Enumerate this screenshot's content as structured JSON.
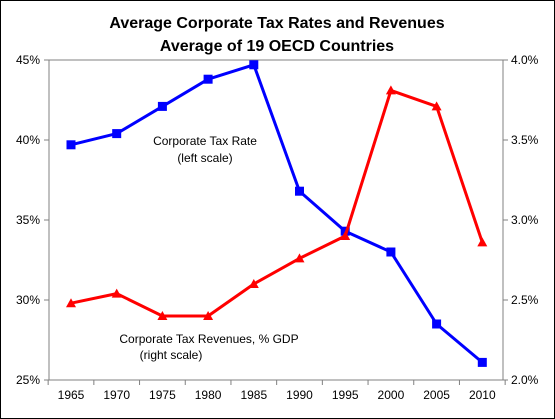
{
  "chart_data": {
    "type": "line",
    "title": "Average Corporate Tax Rates and Revenues",
    "subtitle": "Average of 19 OECD Countries",
    "x": [
      1965,
      1970,
      1975,
      1980,
      1985,
      1990,
      1995,
      2000,
      2005,
      2010
    ],
    "x_tick_labels": [
      "1965",
      "1970",
      "1975",
      "1980",
      "1985",
      "1990",
      "1995",
      "2000",
      "2005",
      "2010"
    ],
    "ylim_left": [
      25,
      45
    ],
    "y_left_ticks": [
      25,
      30,
      35,
      40,
      45
    ],
    "y_left_tick_labels": [
      "25%",
      "30%",
      "35%",
      "40%",
      "45%"
    ],
    "ylim_right": [
      2.0,
      4.0
    ],
    "y_right_ticks": [
      2.0,
      2.5,
      3.0,
      3.5,
      4.0
    ],
    "y_right_tick_labels": [
      "2.0%",
      "2.5%",
      "3.0%",
      "3.5%",
      "4.0%"
    ],
    "grid": false,
    "series": [
      {
        "axis": "left",
        "color": "#0000FF",
        "marker": "square",
        "x": [
          1965,
          1970,
          1975,
          1980,
          1985,
          1990,
          1995,
          2000,
          2005,
          2010
        ],
        "values": [
          39.7,
          40.4,
          42.1,
          43.8,
          44.7,
          36.8,
          34.3,
          33.0,
          28.5,
          26.1
        ]
      },
      {
        "axis": "right",
        "color": "#FF0000",
        "marker": "triangle",
        "x": [
          1965,
          1970,
          1975,
          1980,
          1985,
          1990,
          1995,
          2000,
          2005,
          2010
        ],
        "values": [
          2.48,
          2.54,
          2.4,
          2.4,
          2.6,
          2.76,
          2.9,
          3.81,
          3.71,
          2.86
        ]
      }
    ],
    "annotations": [
      {
        "lines": [
          "Corporate Tax Rate",
          "(left scale)"
        ]
      },
      {
        "lines": [
          "Corporate Tax Revenues, % GDP",
          "(right scale)"
        ]
      }
    ]
  }
}
